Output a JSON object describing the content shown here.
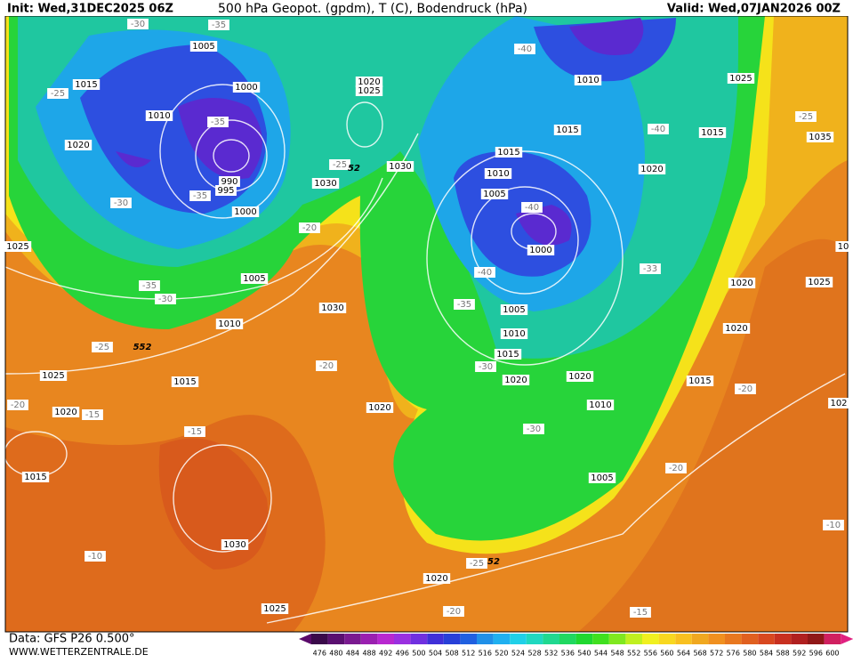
{
  "header": {
    "init": "Init: Wed,31DEC2025 06Z",
    "title": "500 hPa Geopot. (gpdm), T (C), Bodendruck (hPa)",
    "valid": "Valid: Wed,07JAN2026 00Z"
  },
  "footer": {
    "data_source": "Data: GFS P26 0.500°",
    "website": "WWW.WETTERZENTRALE.DE"
  },
  "legend": {
    "labels": [
      476,
      480,
      484,
      488,
      492,
      496,
      500,
      504,
      508,
      512,
      516,
      520,
      524,
      528,
      532,
      536,
      540,
      544,
      548,
      552,
      556,
      560,
      564,
      568,
      572,
      576,
      580,
      584,
      588,
      592,
      596,
      600
    ]
  },
  "map": {
    "pressure_labels": [
      "1005",
      "1015",
      "1000",
      "1010",
      "1020",
      "990",
      "995",
      "1000",
      "1025",
      "1005",
      "1010",
      "1030",
      "1020",
      "1025",
      "1030",
      "1030",
      "1015",
      "1010",
      "1005",
      "1000",
      "1005",
      "1010",
      "1015",
      "1020",
      "1020",
      "1010",
      "1005",
      "1010",
      "1015",
      "1020",
      "1015",
      "1025",
      "1035",
      "1020",
      "1025",
      "1020",
      "1015",
      "1025",
      "1015",
      "1020",
      "1020",
      "1015",
      "1030",
      "1020",
      "1025",
      "102",
      "10"
    ],
    "temperature_labels": [
      "-30",
      "-35",
      "-25",
      "-35",
      "-35",
      "-30",
      "-35",
      "-30",
      "-25",
      "-20",
      "-25",
      "-20",
      "-15",
      "-20",
      "-15",
      "-10",
      "-40",
      "-40",
      "-40",
      "-35",
      "-30",
      "-30",
      "-40",
      "-33",
      "-20",
      "-25",
      "-20",
      "-25",
      "-20",
      "-15",
      "-10"
    ],
    "height_labels": [
      "552",
      "52",
      "52"
    ]
  }
}
